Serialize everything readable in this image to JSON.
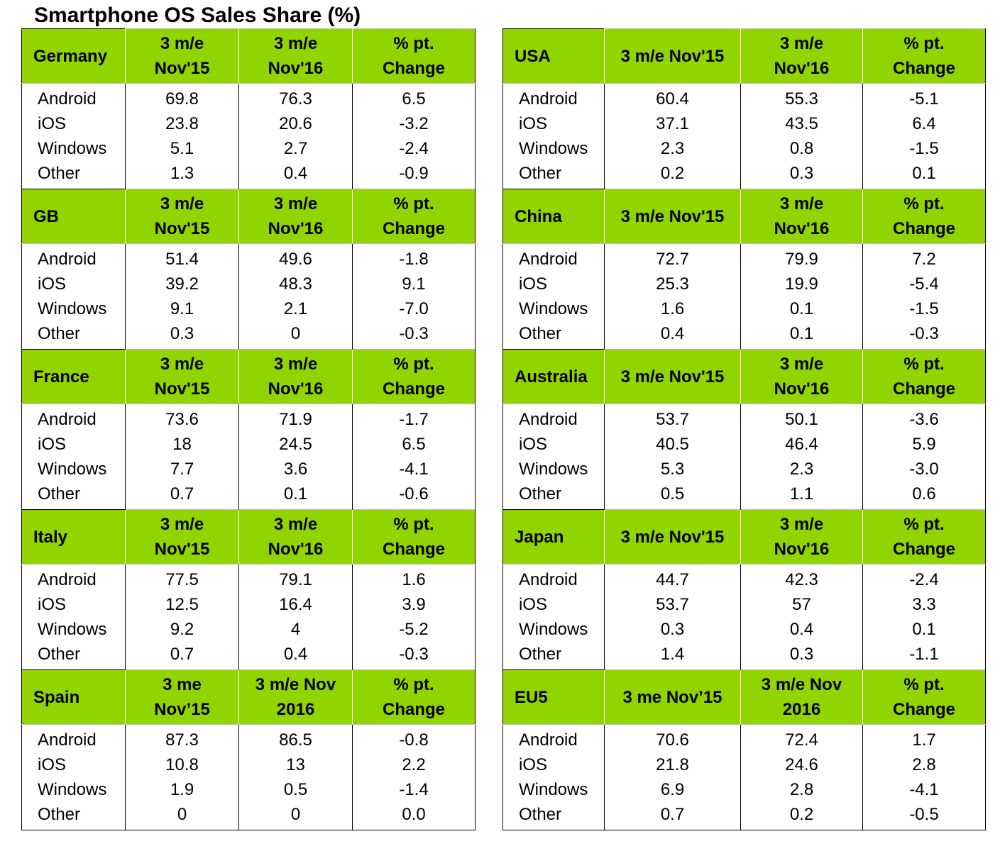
{
  "title": "Smartphone OS Sales Share (%)",
  "colors": {
    "header_bg": "#92d400",
    "border": "#000000"
  },
  "left_regions": [
    {
      "name": "Germany",
      "headers": [
        [
          "3 m/e",
          "Nov'15"
        ],
        [
          "3 m/e",
          "Nov'16"
        ],
        [
          "% pt.",
          "Change"
        ]
      ],
      "rows": [
        [
          "Android",
          "69.8",
          "76.3",
          "6.5"
        ],
        [
          "iOS",
          "23.8",
          "20.6",
          "-3.2"
        ],
        [
          "Windows",
          "5.1",
          "2.7",
          "-2.4"
        ],
        [
          "Other",
          "1.3",
          "0.4",
          "-0.9"
        ]
      ]
    },
    {
      "name": "GB",
      "headers": [
        [
          "3 m/e",
          "Nov'15"
        ],
        [
          "3 m/e",
          "Nov'16"
        ],
        [
          "% pt.",
          "Change"
        ]
      ],
      "rows": [
        [
          "Android",
          "51.4",
          "49.6",
          "-1.8"
        ],
        [
          "iOS",
          "39.2",
          "48.3",
          "9.1"
        ],
        [
          "Windows",
          "9.1",
          "2.1",
          "-7.0"
        ],
        [
          "Other",
          "0.3",
          "0",
          "-0.3"
        ]
      ]
    },
    {
      "name": "France",
      "headers": [
        [
          "3 m/e",
          "Nov'15"
        ],
        [
          "3 m/e",
          "Nov'16"
        ],
        [
          "% pt.",
          "Change"
        ]
      ],
      "rows": [
        [
          "Android",
          "73.6",
          "71.9",
          "-1.7"
        ],
        [
          "iOS",
          "18",
          "24.5",
          "6.5"
        ],
        [
          "Windows",
          "7.7",
          "3.6",
          "-4.1"
        ],
        [
          "Other",
          "0.7",
          "0.1",
          "-0.6"
        ]
      ]
    },
    {
      "name": "Italy",
      "headers": [
        [
          "3 m/e",
          "Nov'15"
        ],
        [
          "3 m/e",
          "Nov'16"
        ],
        [
          "% pt.",
          "Change"
        ]
      ],
      "rows": [
        [
          "Android",
          "77.5",
          "79.1",
          "1.6"
        ],
        [
          "iOS",
          "12.5",
          "16.4",
          "3.9"
        ],
        [
          "Windows",
          "9.2",
          "4",
          "-5.2"
        ],
        [
          "Other",
          "0.7",
          "0.4",
          "-0.3"
        ]
      ]
    },
    {
      "name": "Spain",
      "headers": [
        [
          "3 me",
          "Nov’15"
        ],
        [
          "3 m/e Nov",
          "2016"
        ],
        [
          "% pt.",
          "Change"
        ]
      ],
      "rows": [
        [
          "Android",
          "87.3",
          "86.5",
          "-0.8"
        ],
        [
          "iOS",
          "10.8",
          "13",
          "2.2"
        ],
        [
          "Windows",
          "1.9",
          "0.5",
          "-1.4"
        ],
        [
          "Other",
          "0",
          "0",
          "0.0"
        ]
      ]
    }
  ],
  "right_regions": [
    {
      "name": "USA",
      "headers": [
        [
          "3 m/e Nov'15"
        ],
        [
          "3 m/e",
          "Nov'16"
        ],
        [
          "% pt.",
          "Change"
        ]
      ],
      "rows": [
        [
          "Android",
          "60.4",
          "55.3",
          "-5.1"
        ],
        [
          "iOS",
          "37.1",
          "43.5",
          "6.4"
        ],
        [
          "Windows",
          "2.3",
          "0.8",
          "-1.5"
        ],
        [
          "Other",
          "0.2",
          "0.3",
          "0.1"
        ]
      ]
    },
    {
      "name": "China",
      "headers": [
        [
          "3 m/e Nov'15"
        ],
        [
          "3 m/e",
          "Nov'16"
        ],
        [
          "% pt.",
          "Change"
        ]
      ],
      "rows": [
        [
          "Android",
          "72.7",
          "79.9",
          "7.2"
        ],
        [
          "iOS",
          "25.3",
          "19.9",
          "-5.4"
        ],
        [
          "Windows",
          "1.6",
          "0.1",
          "-1.5"
        ],
        [
          "Other",
          "0.4",
          "0.1",
          "-0.3"
        ]
      ]
    },
    {
      "name": "Australia",
      "headers": [
        [
          "3 m/e Nov'15"
        ],
        [
          "3 m/e",
          "Nov'16"
        ],
        [
          "% pt.",
          "Change"
        ]
      ],
      "rows": [
        [
          "Android",
          "53.7",
          "50.1",
          "-3.6"
        ],
        [
          "iOS",
          "40.5",
          "46.4",
          "5.9"
        ],
        [
          "Windows",
          "5.3",
          "2.3",
          "-3.0"
        ],
        [
          "Other",
          "0.5",
          "1.1",
          "0.6"
        ]
      ]
    },
    {
      "name": "Japan",
      "headers": [
        [
          "3 m/e Nov'15"
        ],
        [
          "3 m/e",
          "Nov'16"
        ],
        [
          "% pt.",
          "Change"
        ]
      ],
      "rows": [
        [
          "Android",
          "44.7",
          "42.3",
          "-2.4"
        ],
        [
          "iOS",
          "53.7",
          "57",
          "3.3"
        ],
        [
          "Windows",
          "0.3",
          "0.4",
          "0.1"
        ],
        [
          "Other",
          "1.4",
          "0.3",
          "-1.1"
        ]
      ]
    },
    {
      "name": "EU5",
      "headers": [
        [
          "3 me Nov’15"
        ],
        [
          "3 m/e Nov",
          "2016"
        ],
        [
          "% pt.",
          "Change"
        ]
      ],
      "rows": [
        [
          "Android",
          "70.6",
          "72.4",
          "1.7"
        ],
        [
          "iOS",
          "21.8",
          "24.6",
          "2.8"
        ],
        [
          "Windows",
          "6.9",
          "2.8",
          "-4.1"
        ],
        [
          "Other",
          "0.7",
          "0.2",
          "-0.5"
        ]
      ]
    }
  ]
}
